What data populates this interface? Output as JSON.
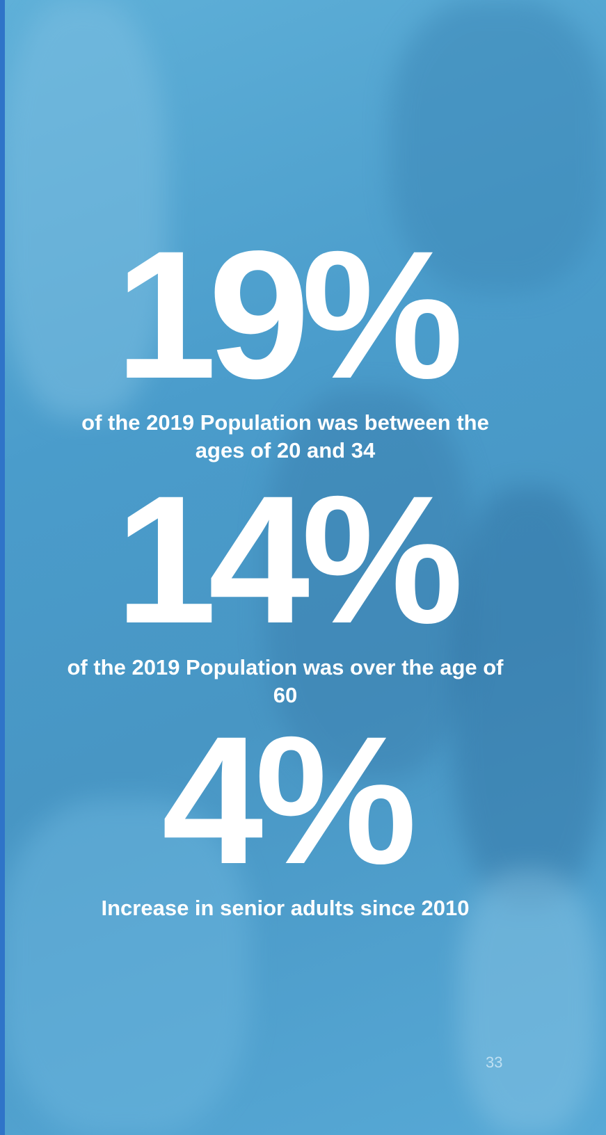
{
  "stats": [
    {
      "figure": "19%",
      "caption": "of the 2019 Population was between the ages of 20 and 34"
    },
    {
      "figure": "14%",
      "caption": "of the 2019 Population was over the age of 60"
    },
    {
      "figure": "4%",
      "caption": "Increase in senior adults since 2010"
    }
  ],
  "page_number": "33"
}
